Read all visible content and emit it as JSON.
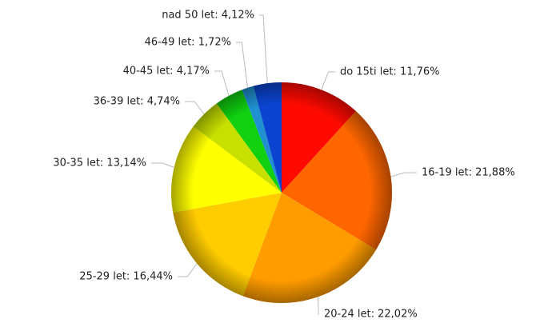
{
  "chart_data": {
    "type": "pie",
    "values": [
      11.76,
      21.88,
      22.02,
      16.44,
      13.14,
      4.74,
      4.17,
      1.72,
      4.12
    ],
    "value_labels": [
      "do 15ti let: 11,76%",
      "16-19 let: 21,88%",
      "20-24 let: 22,02%",
      "25-29 let: 16,44%",
      "30-35 let: 13,14%",
      "36-39 let: 4,74%",
      "40-45 let: 4,17%",
      "46-49 let: 1,72%",
      "nad 50 let: 4,12%"
    ],
    "colors": [
      "#ff0a00",
      "#ff6600",
      "#ff9c00",
      "#ffcc00",
      "#ffff00",
      "#c8e000",
      "#10d010",
      "#2090d0",
      "#0a44d0"
    ]
  }
}
